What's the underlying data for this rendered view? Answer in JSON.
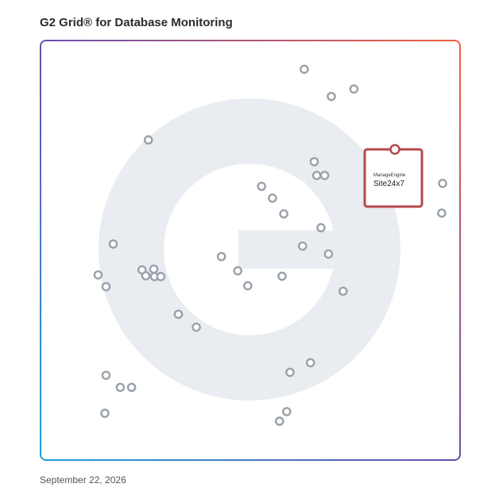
{
  "title": "G2 Grid® for Database Monitoring",
  "date": "September 22, 2026",
  "colors": {
    "marker": "#9aa1aa",
    "highlight": "#b5484a",
    "watermark": "#e9ecf0",
    "divider_h": "#7a5aa8",
    "divider_v": "#8a6bb8"
  },
  "highlight": {
    "brand_text": "ManageEngine",
    "product_text": "Site24x7"
  },
  "chart_data": {
    "type": "scatter",
    "title": "G2 Grid® for Database Monitoring",
    "xlabel": "",
    "ylabel": "",
    "xlim": [
      0,
      100
    ],
    "ylim": [
      0,
      100
    ],
    "grid": "quadrants",
    "points": [
      {
        "x": 62.9,
        "y": 93.3
      },
      {
        "x": 74.8,
        "y": 88.6
      },
      {
        "x": 69.4,
        "y": 86.8
      },
      {
        "x": 25.6,
        "y": 76.4
      },
      {
        "x": 65.3,
        "y": 71.2
      },
      {
        "x": 65.9,
        "y": 67.9
      },
      {
        "x": 67.8,
        "y": 67.9
      },
      {
        "x": 52.7,
        "y": 65.3
      },
      {
        "x": 55.3,
        "y": 62.5
      },
      {
        "x": 96.0,
        "y": 66.0
      },
      {
        "x": 58.0,
        "y": 58.7
      },
      {
        "x": 66.9,
        "y": 55.4
      },
      {
        "x": 95.8,
        "y": 58.9
      },
      {
        "x": 17.2,
        "y": 51.5
      },
      {
        "x": 62.5,
        "y": 51.0
      },
      {
        "x": 68.7,
        "y": 49.1
      },
      {
        "x": 43.1,
        "y": 48.5
      },
      {
        "x": 24.1,
        "y": 45.3
      },
      {
        "x": 26.9,
        "y": 45.5
      },
      {
        "x": 25.0,
        "y": 43.9
      },
      {
        "x": 27.1,
        "y": 43.7
      },
      {
        "x": 28.6,
        "y": 43.7
      },
      {
        "x": 47.0,
        "y": 45.1
      },
      {
        "x": 13.6,
        "y": 44.1
      },
      {
        "x": 57.6,
        "y": 43.8
      },
      {
        "x": 15.5,
        "y": 41.3
      },
      {
        "x": 49.4,
        "y": 41.5
      },
      {
        "x": 72.2,
        "y": 40.2
      },
      {
        "x": 32.8,
        "y": 34.7
      },
      {
        "x": 37.1,
        "y": 31.6
      },
      {
        "x": 64.4,
        "y": 23.1
      },
      {
        "x": 59.5,
        "y": 20.8
      },
      {
        "x": 15.5,
        "y": 20.1
      },
      {
        "x": 18.9,
        "y": 17.2
      },
      {
        "x": 21.6,
        "y": 17.2
      },
      {
        "x": 15.2,
        "y": 11.0
      },
      {
        "x": 58.7,
        "y": 11.4
      },
      {
        "x": 57.0,
        "y": 9.1
      }
    ],
    "highlight_point": {
      "x": 84.7,
      "y": 73.7,
      "label": "ManageEngine Site24x7"
    }
  }
}
